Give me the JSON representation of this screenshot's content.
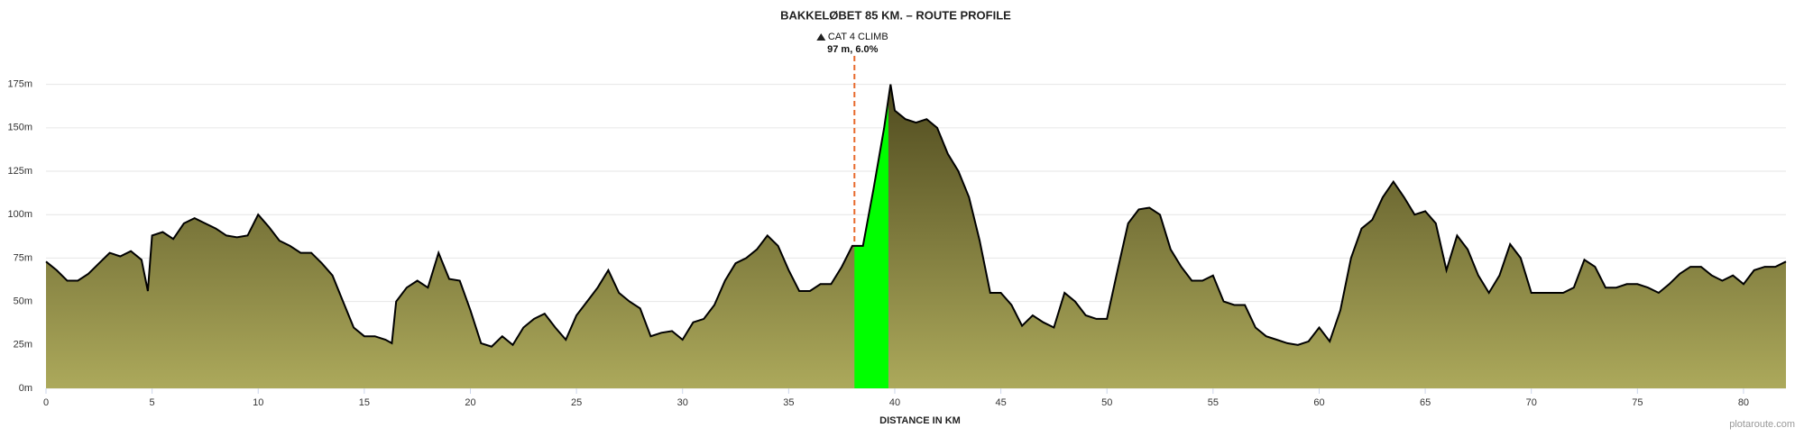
{
  "chart_data": {
    "type": "area",
    "title": "BAKKELØBET 85 KM. – ROUTE PROFILE",
    "x_label": "DISTANCE IN KM",
    "credit": "plotaroute.com",
    "x": [
      0,
      0.5,
      1,
      1.5,
      2,
      2.5,
      3,
      3.5,
      4,
      4.5,
      4.8,
      5,
      5.5,
      6,
      6.5,
      7,
      7.5,
      8,
      8.5,
      9,
      9.5,
      10,
      10.5,
      11,
      11.5,
      12,
      12.5,
      13,
      13.5,
      14,
      14.5,
      15,
      15.5,
      16,
      16.3,
      16.5,
      17,
      17.5,
      18,
      18.5,
      19,
      19.5,
      20,
      20.5,
      21,
      21.5,
      22,
      22.5,
      23,
      23.5,
      24,
      24.5,
      25,
      25.5,
      26,
      26.5,
      27,
      27.5,
      28,
      28.5,
      29,
      29.5,
      30,
      30.5,
      31,
      31.5,
      32,
      32.5,
      33,
      33.5,
      34,
      34.5,
      35,
      35.5,
      36,
      36.5,
      37,
      37.5,
      38,
      38.5,
      39,
      39.5,
      39.8,
      40,
      40.5,
      41,
      41.5,
      42,
      42.5,
      43,
      43.5,
      44,
      44.5,
      45,
      45.5,
      46,
      46.5,
      47,
      47.5,
      48,
      48.5,
      49,
      49.5,
      50,
      50.5,
      51,
      51.5,
      52,
      52.5,
      53,
      53.5,
      54,
      54.5,
      55,
      55.5,
      56,
      56.5,
      57,
      57.5,
      58,
      58.5,
      59,
      59.5,
      60,
      60.5,
      61,
      61.5,
      62,
      62.5,
      63,
      63.5,
      64,
      64.5,
      65,
      65.5,
      66,
      66.5,
      67,
      67.5,
      68,
      68.5,
      69,
      69.5,
      70,
      70.5,
      71,
      71.5,
      72,
      72.5,
      73,
      73.5,
      74,
      74.5,
      75,
      75.5,
      76,
      76.5,
      77,
      77.5,
      78,
      78.5,
      79,
      79.5,
      80,
      80.5,
      81,
      81.5,
      82
    ],
    "values": [
      73,
      68,
      62,
      62,
      66,
      72,
      78,
      76,
      79,
      74,
      56,
      88,
      90,
      86,
      95,
      98,
      95,
      92,
      88,
      87,
      88,
      100,
      93,
      85,
      82,
      78,
      78,
      72,
      65,
      50,
      35,
      30,
      30,
      28,
      26,
      50,
      58,
      62,
      58,
      78,
      63,
      62,
      45,
      26,
      24,
      30,
      25,
      35,
      40,
      43,
      35,
      28,
      42,
      50,
      58,
      68,
      55,
      50,
      46,
      30,
      32,
      33,
      28,
      38,
      40,
      48,
      62,
      72,
      75,
      80,
      88,
      82,
      68,
      56,
      56,
      60,
      60,
      70,
      82,
      82,
      115,
      150,
      175,
      160,
      155,
      153,
      155,
      150,
      135,
      125,
      110,
      85,
      55,
      55,
      48,
      36,
      42,
      38,
      35,
      55,
      50,
      42,
      40,
      40,
      68,
      95,
      103,
      104,
      100,
      80,
      70,
      62,
      62,
      65,
      50,
      48,
      48,
      35,
      30,
      28,
      26,
      25,
      27,
      35,
      27,
      45,
      75,
      92,
      97,
      110,
      119,
      110,
      100,
      102,
      95,
      68,
      88,
      80,
      65,
      55,
      65,
      83,
      75,
      55,
      55,
      55,
      55,
      58,
      74,
      70,
      58,
      58,
      60,
      60,
      58,
      55,
      60,
      66,
      70,
      70,
      65,
      62,
      65,
      60,
      68,
      70,
      70,
      73
    ],
    "line_color": "#000000",
    "area_colors": [
      "#4d481d",
      "#aca95b"
    ],
    "xlim": [
      0,
      82
    ],
    "xticks": [
      0,
      5,
      10,
      15,
      20,
      25,
      30,
      35,
      40,
      45,
      50,
      55,
      60,
      65,
      70,
      75,
      80
    ],
    "ylim": [
      0,
      180
    ],
    "yticks": [
      {
        "value": 0,
        "label": "0m"
      },
      {
        "value": 25,
        "label": "25m"
      },
      {
        "value": 50,
        "label": "50m"
      },
      {
        "value": 75,
        "label": "75m"
      },
      {
        "value": 100,
        "label": "100m"
      },
      {
        "value": 125,
        "label": "125m"
      },
      {
        "value": 150,
        "label": "150m"
      },
      {
        "value": 175,
        "label": "175m"
      }
    ],
    "grid": true,
    "climb": {
      "start": 38.1,
      "end": 39.7,
      "label": "CAT 4 CLIMB",
      "detail": "97 m, 6.0%",
      "color": "#00ff00",
      "marker_color": "#e8692b"
    }
  }
}
